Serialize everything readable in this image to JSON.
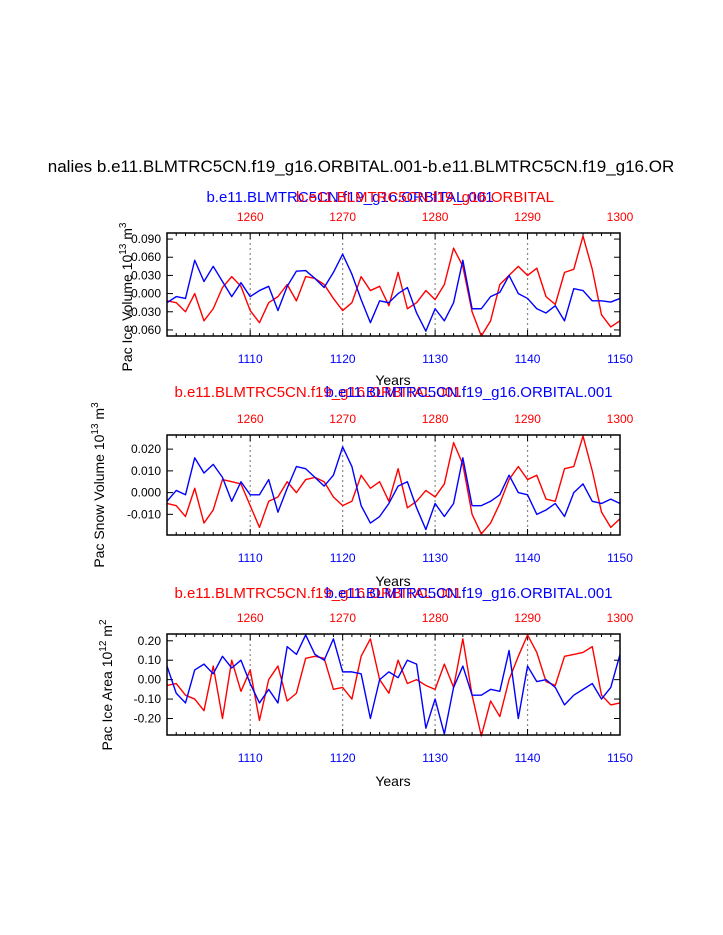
{
  "figure_title": "nalies b.e11.BLMTRC5CN.f19_g16.ORBITAL.001-b.e11.BLMTRC5CN.f19_g16.OR",
  "colors": {
    "case1": "#0000ff",
    "case2": "#ff0000",
    "axis": "#000000",
    "grid": "#888888"
  },
  "chart_data": [
    {
      "type": "line",
      "title": "Pac Ice Volume",
      "ylabel_base": "Pac Ice Volume 10",
      "ylabel_exp": "13",
      "ylabel_unit": " m",
      "ylabel_unit_exp": "3",
      "xlabel": "Years",
      "title_case1": "b.e11.BLMTRC5CN.f19_g16.ORBITAL.001",
      "title_case2": "b.e11.BLMTRC5CN.f19_g16.ORBITAL",
      "xlim_bottom": [
        1101,
        1150
      ],
      "xlim_top": [
        1251,
        1300
      ],
      "bottom_ticks": [
        "1110",
        "1120",
        "1130",
        "1140",
        "1150"
      ],
      "top_ticks": [
        "1260",
        "1270",
        "1280",
        "1290",
        "1300"
      ],
      "ylim": [
        -0.07,
        0.1
      ],
      "yticks": [
        0.09,
        0.06,
        0.03,
        0.0,
        -0.03,
        -0.06
      ],
      "ytick_labels": [
        "0.090",
        "0.060",
        "0.030",
        "0.000",
        "-0.030",
        "-0.060"
      ],
      "series": [
        {
          "name": "b.e11.BLMTRC5CN.f19_g16.ORBITAL.001",
          "color": "case1",
          "x_start": 1101,
          "values": [
            -0.015,
            -0.005,
            -0.008,
            0.055,
            0.02,
            0.045,
            0.02,
            -0.005,
            0.018,
            -0.005,
            0.005,
            0.012,
            -0.028,
            0.012,
            0.037,
            0.038,
            0.025,
            0.01,
            0.035,
            0.065,
            0.032,
            -0.01,
            -0.048,
            -0.012,
            -0.015,
            0.0,
            0.01,
            -0.032,
            -0.062,
            -0.025,
            -0.045,
            -0.015,
            0.055,
            -0.025,
            -0.025,
            -0.005,
            0.002,
            0.03,
            0.0,
            -0.008,
            -0.025,
            -0.032,
            -0.02,
            -0.045,
            0.008,
            0.005,
            -0.012,
            -0.012,
            -0.014,
            -0.008
          ]
        },
        {
          "name": "b.e11.BLMTRC5CN.f19_g16.ORBITAL",
          "color": "case2",
          "x_start": 1251,
          "values": [
            -0.012,
            -0.015,
            -0.03,
            0.0,
            -0.045,
            -0.025,
            0.01,
            0.028,
            0.012,
            -0.028,
            -0.048,
            -0.015,
            -0.005,
            0.015,
            -0.012,
            0.028,
            0.025,
            0.015,
            -0.008,
            -0.028,
            -0.015,
            0.028,
            0.005,
            0.012,
            -0.02,
            0.035,
            -0.025,
            -0.015,
            0.005,
            -0.01,
            0.015,
            0.075,
            0.045,
            -0.03,
            -0.07,
            -0.045,
            0.015,
            0.03,
            0.045,
            0.03,
            0.042,
            -0.005,
            -0.018,
            0.035,
            0.04,
            0.095,
            0.04,
            -0.035,
            -0.055,
            -0.045
          ]
        }
      ]
    },
    {
      "type": "line",
      "title": "Pac Snow Volume",
      "ylabel_base": "Pac Snow Volume 10",
      "ylabel_exp": "13",
      "ylabel_unit": " m",
      "ylabel_unit_exp": "3",
      "xlabel": "Years",
      "title_case1": "b.e11.BLMTRC5CN.f19_g16.ORBITAL.001",
      "title_case2": "b.e11.BLMTRC5CN.f19_g16.ORBITAL.001",
      "xlim_bottom": [
        1101,
        1150
      ],
      "xlim_top": [
        1251,
        1300
      ],
      "bottom_ticks": [
        "1110",
        "1120",
        "1130",
        "1140",
        "1150"
      ],
      "top_ticks": [
        "1260",
        "1270",
        "1280",
        "1290",
        "1300"
      ],
      "ylim": [
        -0.0195,
        0.0265
      ],
      "yticks": [
        0.02,
        0.01,
        0.0,
        -0.01
      ],
      "ytick_labels": [
        "0.020",
        "0.010",
        "0.000",
        "-0.010"
      ],
      "series": [
        {
          "name": "b.e11.BLMTRC5CN.f19_g16.ORBITAL.001",
          "color": "case1",
          "x_start": 1101,
          "values": [
            -0.004,
            0.001,
            -0.001,
            0.016,
            0.009,
            0.013,
            0.007,
            -0.004,
            0.005,
            -0.001,
            -0.001,
            0.006,
            -0.009,
            0.002,
            0.012,
            0.011,
            0.007,
            0.003,
            0.008,
            0.021,
            0.012,
            -0.006,
            -0.014,
            -0.011,
            -0.005,
            0.003,
            0.005,
            -0.007,
            -0.017,
            -0.005,
            -0.011,
            -0.005,
            0.016,
            -0.006,
            -0.006,
            -0.004,
            -0.001,
            0.008,
            0.0,
            -0.001,
            -0.01,
            -0.008,
            -0.005,
            -0.011,
            0.0,
            0.004,
            -0.004,
            -0.005,
            -0.003,
            -0.005
          ]
        },
        {
          "name": "b.e11.BLMTRC5CN.f19_g16.ORBITAL.001",
          "color": "case2",
          "x_start": 1251,
          "values": [
            -0.005,
            -0.006,
            -0.011,
            0.002,
            -0.014,
            -0.008,
            0.006,
            0.005,
            0.004,
            -0.006,
            -0.016,
            -0.004,
            -0.002,
            0.005,
            0.0,
            0.006,
            0.007,
            0.005,
            -0.002,
            -0.006,
            -0.004,
            0.008,
            0.002,
            0.005,
            -0.004,
            0.011,
            -0.007,
            -0.004,
            0.001,
            -0.002,
            0.004,
            0.023,
            0.013,
            -0.01,
            -0.019,
            -0.014,
            -0.005,
            0.006,
            0.012,
            0.006,
            0.008,
            -0.003,
            -0.004,
            0.011,
            0.012,
            0.026,
            0.01,
            -0.009,
            -0.016,
            -0.012
          ]
        }
      ]
    },
    {
      "type": "line",
      "title": "Pac Ice Area",
      "ylabel_base": "Pac Ice Area 10",
      "ylabel_exp": "12",
      "ylabel_unit": " m",
      "ylabel_unit_exp": "2",
      "xlabel": "Years",
      "title_case1": "b.e11.BLMTRC5CN.f19_g16.ORBITAL.001",
      "title_case2": "b.e11.BLMTRC5CN.f19_g16.ORBITAL.001",
      "xlim_bottom": [
        1101,
        1150
      ],
      "xlim_top": [
        1251,
        1300
      ],
      "bottom_ticks": [
        "1110",
        "1120",
        "1130",
        "1140",
        "1150"
      ],
      "top_ticks": [
        "1260",
        "1270",
        "1280",
        "1290",
        "1300"
      ],
      "ylim": [
        -0.285,
        0.235
      ],
      "yticks": [
        0.2,
        0.1,
        0.0,
        -0.1,
        -0.2
      ],
      "ytick_labels": [
        "0.20",
        "0.10",
        "0.00",
        "-0.10",
        "-0.20"
      ],
      "series": [
        {
          "name": "b.e11.BLMTRC5CN.f19_g16.ORBITAL.001",
          "color": "case1",
          "x_start": 1101,
          "values": [
            0.07,
            -0.07,
            -0.12,
            0.05,
            0.08,
            0.03,
            0.12,
            0.06,
            0.1,
            -0.02,
            -0.12,
            -0.05,
            -0.12,
            0.17,
            0.13,
            0.23,
            0.13,
            0.1,
            0.21,
            0.04,
            0.04,
            0.03,
            -0.2,
            0.0,
            0.04,
            0.01,
            0.1,
            0.08,
            -0.25,
            -0.1,
            -0.28,
            -0.04,
            0.07,
            -0.08,
            -0.08,
            -0.05,
            -0.06,
            0.15,
            -0.2,
            0.07,
            -0.01,
            0.0,
            -0.04,
            -0.13,
            -0.08,
            -0.05,
            -0.02,
            -0.1,
            -0.04,
            0.13
          ]
        },
        {
          "name": "b.e11.BLMTRC5CN.f19_g16.ORBITAL.001",
          "color": "case2",
          "x_start": 1251,
          "values": [
            -0.03,
            -0.02,
            -0.08,
            -0.1,
            -0.16,
            0.07,
            -0.2,
            0.1,
            -0.06,
            0.05,
            -0.21,
            0.0,
            0.07,
            -0.11,
            -0.07,
            0.11,
            0.12,
            0.11,
            -0.05,
            -0.04,
            -0.1,
            0.12,
            0.21,
            0.0,
            -0.07,
            0.1,
            -0.02,
            0.0,
            -0.03,
            -0.05,
            0.08,
            -0.04,
            0.21,
            -0.08,
            -0.29,
            -0.11,
            -0.19,
            0.0,
            0.12,
            0.23,
            0.14,
            -0.01,
            -0.03,
            0.12,
            0.13,
            0.14,
            0.17,
            -0.08,
            -0.13,
            -0.12
          ]
        }
      ]
    }
  ]
}
